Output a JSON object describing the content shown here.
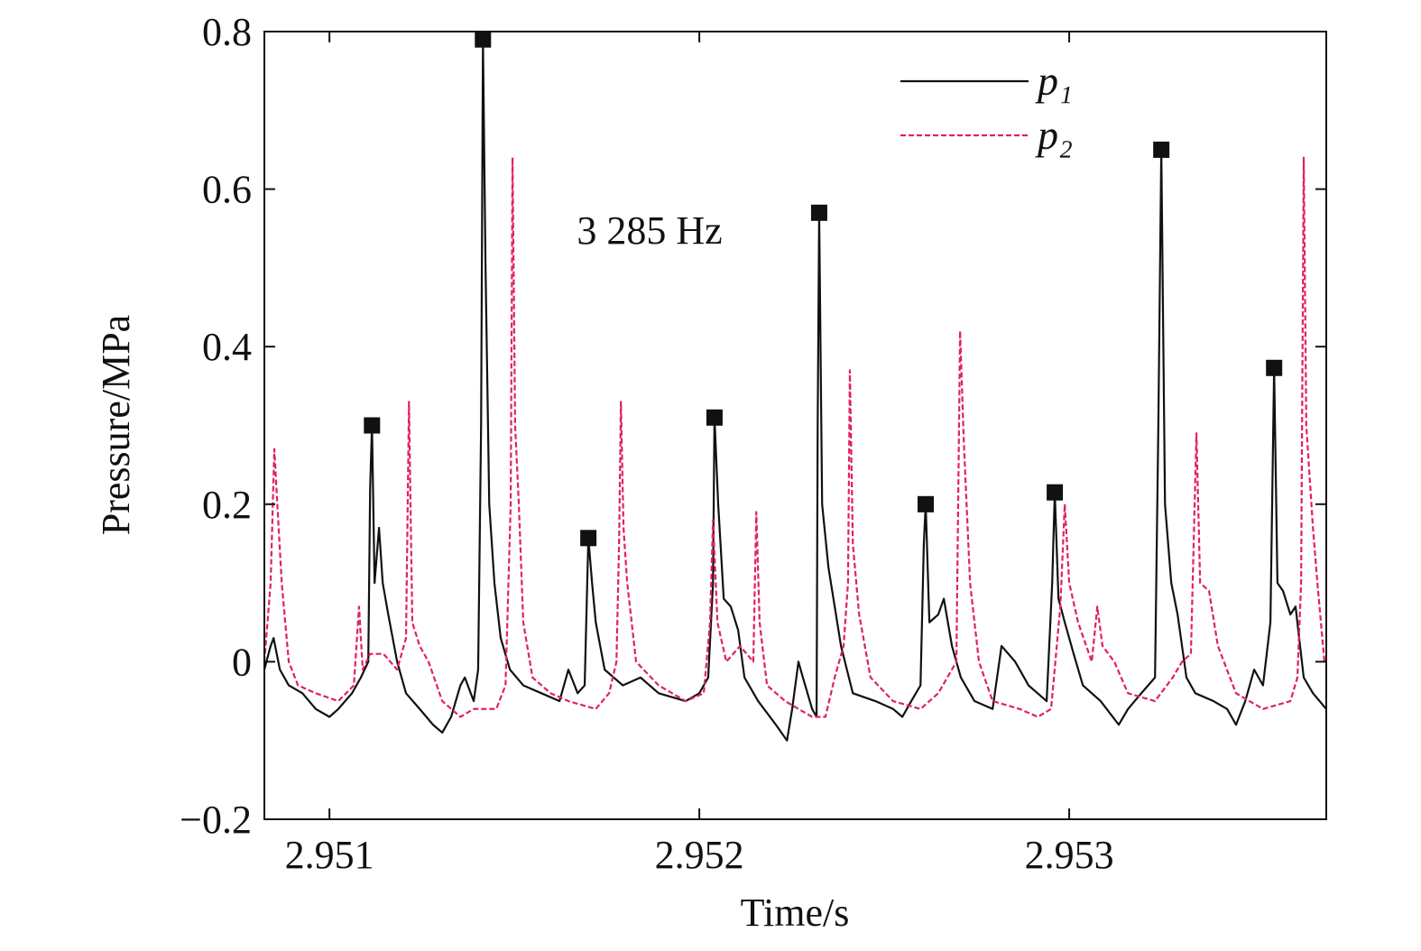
{
  "chart_data": {
    "type": "line",
    "xlabel": "Time/s",
    "ylabel": "Pressure/MPa",
    "annotation": "3 285 Hz",
    "xlim": [
      2.950824,
      2.953695
    ],
    "ylim": [
      -0.2,
      0.8
    ],
    "xticks": [
      2.951,
      2.952,
      2.953
    ],
    "yticks": [
      {
        "value": -0.2,
        "label": "−0.2"
      },
      0,
      0.2,
      0.4,
      0.6,
      0.8
    ],
    "legend": "upper right",
    "series": [
      {
        "name": "p₁",
        "color": "#111111",
        "dash": false,
        "x": [
          2.950824,
          2.950841,
          2.950849,
          2.950866,
          2.95089,
          2.950927,
          2.950963,
          2.951,
          2.951024,
          2.951061,
          2.951085,
          2.951105,
          2.95111,
          2.951115,
          2.951122,
          2.951134,
          2.951144,
          2.951159,
          2.951183,
          2.951207,
          2.951244,
          2.95128,
          2.951305,
          2.951329,
          2.951354,
          2.951366,
          2.95139,
          2.951402,
          2.95141,
          2.951415,
          2.951422,
          2.951432,
          2.951446,
          2.951463,
          2.951488,
          2.951524,
          2.951573,
          2.951622,
          2.951646,
          2.951671,
          2.95169,
          2.9517,
          2.95171,
          2.95172,
          2.951744,
          2.951793,
          2.951841,
          2.95189,
          2.951963,
          2.952,
          2.952024,
          2.952037,
          2.952041,
          2.952051,
          2.952066,
          2.952085,
          2.952105,
          2.952122,
          2.952159,
          2.952207,
          2.952237,
          2.952251,
          2.952268,
          2.95228,
          2.952305,
          2.952317,
          2.95232,
          2.952324,
          2.952332,
          2.952349,
          2.952366,
          2.952383,
          2.952415,
          2.952476,
          2.952524,
          2.952549,
          2.952573,
          2.952598,
          2.952607,
          2.952612,
          2.952622,
          2.952646,
          2.952661,
          2.952683,
          2.952707,
          2.952744,
          2.952793,
          2.952817,
          2.952854,
          2.95289,
          2.952939,
          2.952954,
          2.952961,
          2.952971,
          2.952988,
          2.953012,
          2.953037,
          2.953085,
          2.953134,
          2.953159,
          2.953195,
          2.953232,
          2.953241,
          2.953249,
          2.953259,
          2.953276,
          2.953293,
          2.953317,
          2.953341,
          2.95339,
          2.953427,
          2.953451,
          2.953476,
          2.9535,
          2.953524,
          2.953544,
          2.953554,
          2.953563,
          2.953578,
          2.953598,
          2.953612,
          2.953634,
          2.953659,
          2.953695
        ],
        "values": [
          -0.01,
          0.02,
          0.03,
          -0.01,
          -0.03,
          -0.04,
          -0.06,
          -0.07,
          -0.06,
          -0.04,
          -0.02,
          0.0,
          0.22,
          0.3,
          0.1,
          0.17,
          0.1,
          0.06,
          0.0,
          -0.04,
          -0.06,
          -0.08,
          -0.09,
          -0.07,
          -0.03,
          -0.02,
          -0.05,
          -0.01,
          0.3,
          0.79,
          0.5,
          0.2,
          0.1,
          0.03,
          -0.01,
          -0.03,
          -0.04,
          -0.05,
          -0.01,
          -0.04,
          -0.03,
          0.157,
          0.1,
          0.05,
          -0.01,
          -0.03,
          -0.02,
          -0.04,
          -0.05,
          -0.04,
          -0.02,
          0.1,
          0.31,
          0.2,
          0.08,
          0.07,
          0.04,
          -0.02,
          -0.05,
          -0.08,
          -0.1,
          -0.06,
          0.0,
          -0.02,
          -0.06,
          -0.07,
          0.3,
          0.57,
          0.2,
          0.12,
          0.07,
          0.02,
          -0.04,
          -0.05,
          -0.06,
          -0.07,
          -0.05,
          -0.03,
          0.15,
          0.2,
          0.05,
          0.06,
          0.08,
          0.02,
          -0.02,
          -0.05,
          -0.06,
          0.02,
          0.0,
          -0.03,
          -0.05,
          0.1,
          0.215,
          0.08,
          0.05,
          0.01,
          -0.03,
          -0.05,
          -0.08,
          -0.06,
          -0.04,
          -0.02,
          0.3,
          0.65,
          0.2,
          0.1,
          0.06,
          -0.02,
          -0.04,
          -0.05,
          -0.06,
          -0.08,
          -0.05,
          -0.01,
          -0.03,
          0.05,
          0.373,
          0.1,
          0.09,
          0.06,
          0.07,
          -0.02,
          -0.04,
          -0.06
        ]
      },
      {
        "name": "p₂",
        "color": "#e0206a",
        "dash": true,
        "x": [
          2.950824,
          2.950841,
          2.950851,
          2.950859,
          2.950871,
          2.95089,
          2.950915,
          2.950963,
          2.951024,
          2.951066,
          2.95108,
          2.95109,
          2.95111,
          2.951146,
          2.951183,
          2.951207,
          2.951215,
          2.951224,
          2.951244,
          2.951268,
          2.951305,
          2.951354,
          2.95139,
          2.951451,
          2.951476,
          2.95149,
          2.951495,
          2.951502,
          2.951512,
          2.951524,
          2.951549,
          2.951598,
          2.951646,
          2.95172,
          2.951756,
          2.951776,
          2.951783,
          2.951788,
          2.951795,
          2.951805,
          2.951829,
          2.95189,
          2.951963,
          2.952012,
          2.952029,
          2.952037,
          2.952049,
          2.952073,
          2.95211,
          2.952146,
          2.952154,
          2.952163,
          2.952183,
          2.952232,
          2.952305,
          2.952341,
          2.952366,
          2.95239,
          2.952402,
          2.952407,
          2.952415,
          2.952432,
          2.952463,
          2.952524,
          2.952598,
          2.952646,
          2.952695,
          2.952705,
          2.952715,
          2.952732,
          2.952756,
          2.952793,
          2.952866,
          2.952915,
          2.952951,
          2.952976,
          2.952988,
          2.953,
          2.953024,
          2.953061,
          2.953076,
          2.95309,
          2.953122,
          2.953159,
          2.953232,
          2.95328,
          2.953305,
          2.953329,
          2.953344,
          2.953354,
          2.953378,
          2.953402,
          2.953451,
          2.953524,
          2.953598,
          2.953617,
          2.953627,
          2.953634,
          2.953641,
          2.953659,
          2.953671,
          2.95369
        ],
        "values": [
          0.0,
          0.1,
          0.27,
          0.2,
          0.1,
          0.0,
          -0.03,
          -0.04,
          -0.05,
          -0.03,
          0.07,
          -0.01,
          0.01,
          0.01,
          -0.01,
          0.03,
          0.33,
          0.05,
          0.02,
          0.0,
          -0.05,
          -0.07,
          -0.06,
          -0.06,
          -0.03,
          0.2,
          0.64,
          0.3,
          0.2,
          0.05,
          -0.02,
          -0.04,
          -0.05,
          -0.06,
          -0.04,
          0.0,
          0.15,
          0.33,
          0.17,
          0.1,
          0.0,
          -0.03,
          -0.05,
          -0.04,
          0.05,
          0.18,
          0.05,
          0.0,
          0.02,
          0.0,
          0.19,
          0.05,
          -0.03,
          -0.05,
          -0.07,
          -0.07,
          -0.02,
          0.02,
          0.1,
          0.37,
          0.15,
          0.06,
          -0.02,
          -0.05,
          -0.06,
          -0.04,
          0.0,
          0.42,
          0.28,
          0.1,
          0.0,
          -0.05,
          -0.06,
          -0.07,
          -0.06,
          0.07,
          0.2,
          0.1,
          0.05,
          0.0,
          0.07,
          0.02,
          0.0,
          -0.04,
          -0.05,
          -0.02,
          0.0,
          0.01,
          0.29,
          0.1,
          0.09,
          0.02,
          -0.04,
          -0.06,
          -0.05,
          -0.02,
          0.1,
          0.64,
          0.3,
          0.17,
          0.1,
          0.0
        ]
      }
    ],
    "markers": {
      "color": "#111111",
      "x": [
        2.951115,
        2.951415,
        2.9517,
        2.952041,
        2.952324,
        2.952612,
        2.952961,
        2.953249,
        2.953554
      ],
      "values": [
        0.3,
        0.79,
        0.157,
        0.31,
        0.57,
        0.2,
        0.215,
        0.65,
        0.373
      ]
    }
  }
}
